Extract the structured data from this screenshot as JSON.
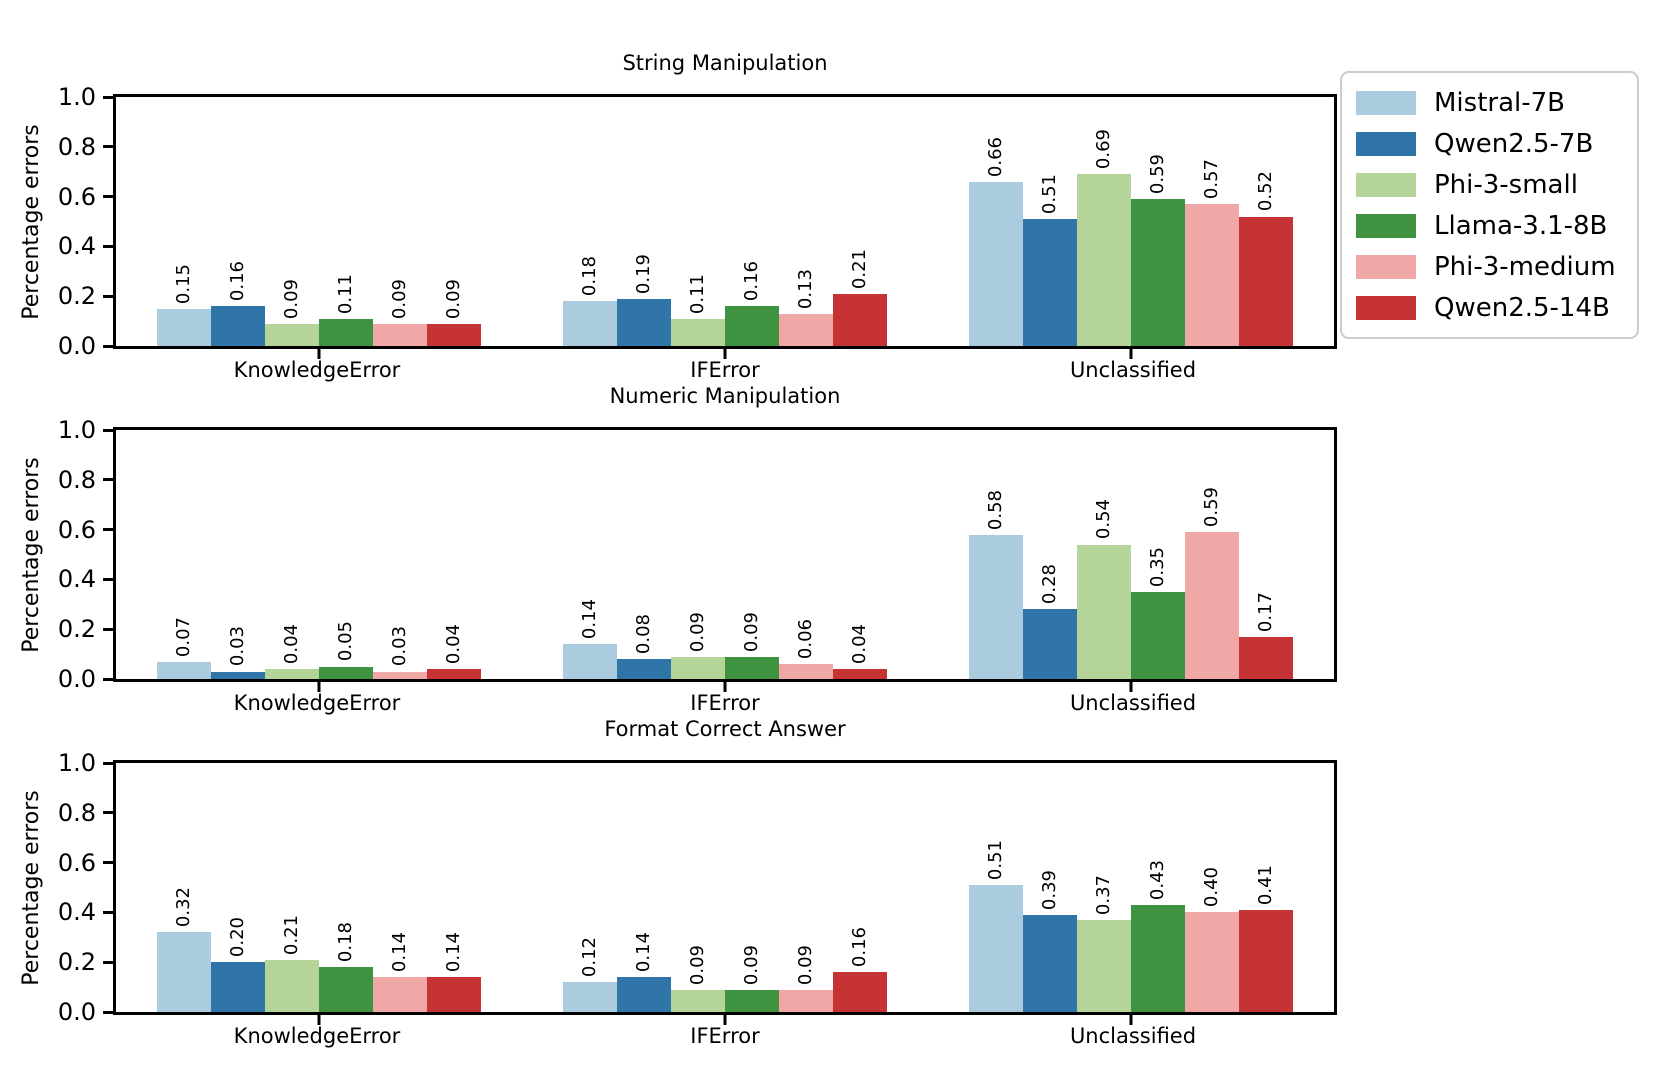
{
  "y_axis": {
    "label": "Percentage errors",
    "ticks": [
      {
        "value": 0.0,
        "label": "0.0"
      },
      {
        "value": 0.2,
        "label": "0.2"
      },
      {
        "value": 0.4,
        "label": "0.4"
      },
      {
        "value": 0.6,
        "label": "0.6"
      },
      {
        "value": 0.8,
        "label": "0.8"
      },
      {
        "value": 1.0,
        "label": "1.0"
      }
    ]
  },
  "legend": {
    "entries": [
      {
        "label": "Mistral-7B",
        "color": "#abcbde"
      },
      {
        "label": "Qwen2.5-7B",
        "color": "#3075a7"
      },
      {
        "label": "Phi-3-small",
        "color": "#b4d49a"
      },
      {
        "label": "Llama-3.1-8B",
        "color": "#3f923f"
      },
      {
        "label": "Phi-3-medium",
        "color": "#f0a8a6"
      },
      {
        "label": "Qwen2.5-14B",
        "color": "#c63334"
      }
    ]
  },
  "chart_data": [
    {
      "type": "bar",
      "title": "String Manipulation",
      "ylabel": "Percentage errors",
      "ylim": [
        0.0,
        1.0
      ],
      "grid": false,
      "legend_position": "upper right outside",
      "categories": [
        "KnowledgeError",
        "IFError",
        "Unclassified"
      ],
      "series": [
        {
          "name": "Mistral-7B",
          "values": [
            0.15,
            0.18,
            0.66
          ],
          "labels": [
            "0.15",
            "0.18",
            "0.66"
          ]
        },
        {
          "name": "Qwen2.5-7B",
          "values": [
            0.16,
            0.19,
            0.51
          ],
          "labels": [
            "0.16",
            "0.19",
            "0.51"
          ]
        },
        {
          "name": "Phi-3-small",
          "values": [
            0.09,
            0.11,
            0.69
          ],
          "labels": [
            "0.09",
            "0.11",
            "0.69"
          ]
        },
        {
          "name": "Llama-3.1-8B",
          "values": [
            0.11,
            0.16,
            0.59
          ],
          "labels": [
            "0.11",
            "0.16",
            "0.59"
          ]
        },
        {
          "name": "Phi-3-medium",
          "values": [
            0.09,
            0.13,
            0.57
          ],
          "labels": [
            "0.09",
            "0.13",
            "0.57"
          ]
        },
        {
          "name": "Qwen2.5-14B",
          "values": [
            0.09,
            0.21,
            0.52
          ],
          "labels": [
            "0.09",
            "0.21",
            "0.52"
          ]
        }
      ]
    },
    {
      "type": "bar",
      "title": "Numeric Manipulation",
      "ylabel": "Percentage errors",
      "ylim": [
        0.0,
        1.0
      ],
      "grid": false,
      "categories": [
        "KnowledgeError",
        "IFError",
        "Unclassified"
      ],
      "series": [
        {
          "name": "Mistral-7B",
          "values": [
            0.07,
            0.14,
            0.58
          ],
          "labels": [
            "0.07",
            "0.14",
            "0.58"
          ]
        },
        {
          "name": "Qwen2.5-7B",
          "values": [
            0.03,
            0.08,
            0.28
          ],
          "labels": [
            "0.03",
            "0.08",
            "0.28"
          ]
        },
        {
          "name": "Phi-3-small",
          "values": [
            0.04,
            0.09,
            0.54
          ],
          "labels": [
            "0.04",
            "0.09",
            "0.54"
          ]
        },
        {
          "name": "Llama-3.1-8B",
          "values": [
            0.05,
            0.09,
            0.35
          ],
          "labels": [
            "0.05",
            "0.09",
            "0.35"
          ]
        },
        {
          "name": "Phi-3-medium",
          "values": [
            0.03,
            0.06,
            0.59
          ],
          "labels": [
            "0.03",
            "0.06",
            "0.59"
          ]
        },
        {
          "name": "Qwen2.5-14B",
          "values": [
            0.04,
            0.04,
            0.17
          ],
          "labels": [
            "0.04",
            "0.04",
            "0.17"
          ]
        }
      ]
    },
    {
      "type": "bar",
      "title": "Format Correct Answer",
      "ylabel": "Percentage errors",
      "ylim": [
        0.0,
        1.0
      ],
      "grid": false,
      "categories": [
        "KnowledgeError",
        "IFError",
        "Unclassified"
      ],
      "series": [
        {
          "name": "Mistral-7B",
          "values": [
            0.32,
            0.12,
            0.51
          ],
          "labels": [
            "0.32",
            "0.12",
            "0.51"
          ]
        },
        {
          "name": "Qwen2.5-7B",
          "values": [
            0.2,
            0.14,
            0.39
          ],
          "labels": [
            "0.20",
            "0.14",
            "0.39"
          ]
        },
        {
          "name": "Phi-3-small",
          "values": [
            0.21,
            0.09,
            0.37
          ],
          "labels": [
            "0.21",
            "0.09",
            "0.37"
          ]
        },
        {
          "name": "Llama-3.1-8B",
          "values": [
            0.18,
            0.09,
            0.43
          ],
          "labels": [
            "0.18",
            "0.09",
            "0.43"
          ]
        },
        {
          "name": "Phi-3-medium",
          "values": [
            0.14,
            0.09,
            0.4
          ],
          "labels": [
            "0.14",
            "0.09",
            "0.40"
          ]
        },
        {
          "name": "Qwen2.5-14B",
          "values": [
            0.14,
            0.16,
            0.41
          ],
          "labels": [
            "0.14",
            "0.16",
            "0.41"
          ]
        }
      ]
    }
  ]
}
